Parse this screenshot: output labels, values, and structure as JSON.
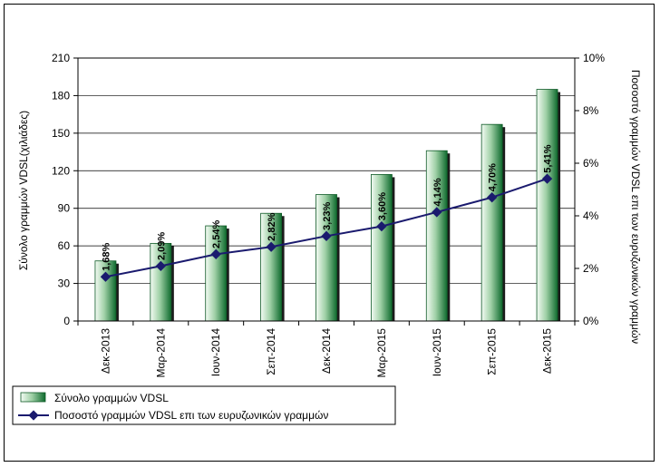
{
  "chart_data": {
    "type": "bar",
    "categories": [
      "Δεκ-2013",
      "Μαρ-2014",
      "Ιουν-2014",
      "Σεπ-2014",
      "Δεκ-2014",
      "Μαρ-2015",
      "Ιουν-2015",
      "Σεπ-2015",
      "Δεκ-2015"
    ],
    "series": [
      {
        "name": "Σύνολο γραμμών VDSL",
        "type": "bar",
        "axis": "left",
        "values": [
          48,
          62,
          76,
          86,
          101,
          117,
          136,
          157,
          185
        ],
        "color": "#1e7a3e"
      },
      {
        "name": "Ποσοστό γραμμών VDSL επι των ευρυζωνικών γραμμών",
        "type": "line",
        "axis": "right",
        "values": [
          1.68,
          2.09,
          2.54,
          2.82,
          3.23,
          3.6,
          4.14,
          4.7,
          5.41
        ],
        "labels": [
          "1,68%",
          "2,09%",
          "2,54%",
          "2,82%",
          "3,23%",
          "3,60%",
          "4,14%",
          "4,70%",
          "5,41%"
        ],
        "color": "#1a1a6e"
      }
    ],
    "ylabel": "Σύνολο γραμμών VDSL(χιλιάδες)",
    "y2label": "Ποσοστό γραμμών VDSL επι των ευρυζωνικών γραμμών",
    "ylim": [
      0,
      210
    ],
    "yticks": [
      "0",
      "30",
      "60",
      "90",
      "120",
      "150",
      "180",
      "210"
    ],
    "y2lim": [
      0,
      10
    ],
    "y2ticks": [
      "0%",
      "2%",
      "4%",
      "6%",
      "8%",
      "10%"
    ],
    "grid": true,
    "legend_position": "bottom-left"
  }
}
